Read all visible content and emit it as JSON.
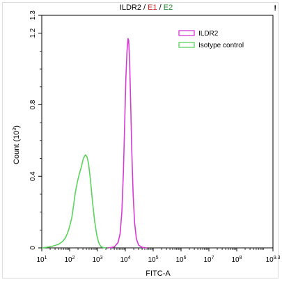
{
  "title": {
    "parts": [
      {
        "text": "ILDR2",
        "color": "#000000"
      },
      {
        "text": " / ",
        "color": "#000000"
      },
      {
        "text": "E1",
        "color": "#d42020"
      },
      {
        "text": " / ",
        "color": "#000000"
      },
      {
        "text": "E2",
        "color": "#1f8a2a"
      }
    ],
    "corner_mark": "!"
  },
  "chart_data": {
    "type": "line",
    "xlabel": "FITC-A",
    "ylabel_base": "Count (10",
    "ylabel_exp": "3",
    "ylabel_close": ")",
    "x_scale": "log",
    "xlim": [
      10,
      1995262315
    ],
    "ylim": [
      0,
      1.3
    ],
    "grid": false,
    "legend_position": "top-right",
    "x_ticks": [
      {
        "value": 10,
        "base": "10",
        "exp": "1"
      },
      {
        "value": 100,
        "base": "10",
        "exp": "2"
      },
      {
        "value": 1000,
        "base": "10",
        "exp": "3"
      },
      {
        "value": 10000,
        "base": "10",
        "exp": "4"
      },
      {
        "value": 100000,
        "base": "10",
        "exp": "5"
      },
      {
        "value": 1000000,
        "base": "10",
        "exp": "6"
      },
      {
        "value": 10000000,
        "base": "10",
        "exp": "7"
      },
      {
        "value": 100000000,
        "base": "10",
        "exp": "8"
      },
      {
        "value": 1995262315,
        "base": "10",
        "exp": "9.3"
      }
    ],
    "y_ticks": [
      {
        "value": 0,
        "label": "0"
      },
      {
        "value": 0.4,
        "label": "0.4"
      },
      {
        "value": 0.8,
        "label": "0.8"
      },
      {
        "value": 1.2,
        "label": "1.2"
      },
      {
        "value": 1.3,
        "label": "1.3"
      }
    ],
    "series": [
      {
        "name": "ILDR2",
        "color": "#d63ad6",
        "points": [
          [
            2500,
            0
          ],
          [
            4000,
            0.005
          ],
          [
            5500,
            0.03
          ],
          [
            6500,
            0.08
          ],
          [
            7500,
            0.2
          ],
          [
            8500,
            0.42
          ],
          [
            9500,
            0.7
          ],
          [
            10500,
            0.95
          ],
          [
            11500,
            1.1
          ],
          [
            12500,
            1.17
          ],
          [
            13200,
            1.16
          ],
          [
            14200,
            1.05
          ],
          [
            15500,
            0.82
          ],
          [
            17000,
            0.55
          ],
          [
            19000,
            0.3
          ],
          [
            21500,
            0.14
          ],
          [
            25000,
            0.05
          ],
          [
            30000,
            0.015
          ],
          [
            40000,
            0.003
          ],
          [
            60000,
            0
          ]
        ]
      },
      {
        "name": "Isotype control",
        "color": "#5ad35a",
        "points": [
          [
            10,
            0
          ],
          [
            18,
            0.005
          ],
          [
            25,
            0.01
          ],
          [
            32,
            0.015
          ],
          [
            40,
            0.02
          ],
          [
            55,
            0.035
          ],
          [
            70,
            0.055
          ],
          [
            85,
            0.085
          ],
          [
            100,
            0.12
          ],
          [
            120,
            0.17
          ],
          [
            140,
            0.24
          ],
          [
            160,
            0.31
          ],
          [
            190,
            0.37
          ],
          [
            220,
            0.41
          ],
          [
            260,
            0.45
          ],
          [
            310,
            0.5
          ],
          [
            370,
            0.52
          ],
          [
            420,
            0.51
          ],
          [
            480,
            0.47
          ],
          [
            560,
            0.38
          ],
          [
            660,
            0.26
          ],
          [
            790,
            0.15
          ],
          [
            950,
            0.07
          ],
          [
            1100,
            0.03
          ],
          [
            1300,
            0.008
          ],
          [
            1600,
            0.002
          ],
          [
            2000,
            0
          ]
        ]
      }
    ]
  }
}
